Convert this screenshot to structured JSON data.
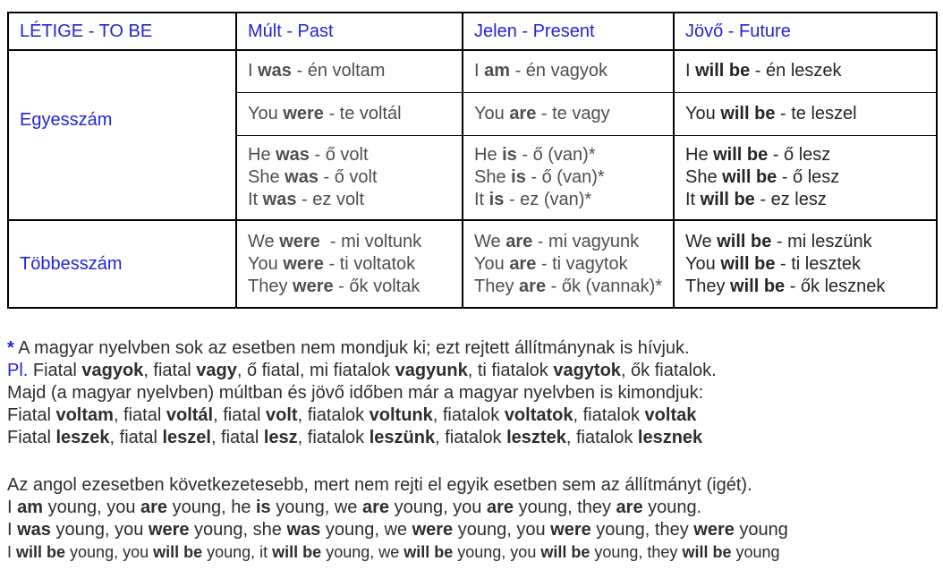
{
  "colors": {
    "accent_blue": "#2424d6",
    "body_text": "#2e2e2e",
    "muted_cell_text": "#4f4f4f",
    "dark_cell_text": "#262626",
    "border_color": "#000000",
    "page_bg": "#ffffff"
  },
  "table": {
    "header": [
      "LÉTIGE - TO BE",
      "Múlt - Past",
      "Jelen - Present",
      "Jövő - Future"
    ],
    "groups": [
      {
        "label": "Egyesszám",
        "rows": [
          {
            "past": "I **was** - én voltam",
            "present": "I **am** - én vagyok",
            "future": "I **will be** - én leszek"
          },
          {
            "past": "You **were** - te voltál",
            "present": "You **are** - te vagy",
            "future": "You **will be** - te leszel"
          },
          {
            "past": [
              "He **was** - ő volt",
              "She **was** - ő volt",
              "It **was** - ez volt"
            ],
            "present": [
              "He **is** - ő (van)*",
              "She **is** - ő (van)*",
              "It **is** - ez (van)*"
            ],
            "future": [
              "He **will be** - ő lesz",
              "She **will be** - ő lesz",
              "It **will be** - ez lesz"
            ]
          }
        ]
      },
      {
        "label": "Többesszám",
        "rows": [
          {
            "past": [
              "We **were**  - mi voltunk",
              "You **were** - ti voltatok",
              "They **were** - ők voltak"
            ],
            "present": [
              "We **are** - mi vagyunk",
              "You **are** - ti vagytok",
              "They **are** - ők (vannak)*"
            ],
            "future": [
              "We **will be** - mi leszünk",
              "You **will be** - ti lesztek",
              "They **will be** - ők lesznek"
            ]
          }
        ]
      }
    ]
  },
  "notes1": {
    "0": {
      "lead": "*",
      "text": " A magyar nyelvben sok az esetben nem mondjuk ki; ezt rejtett állítmánynak is hívjuk."
    },
    "1": {
      "lead": "Pl.",
      "text": " Fiatal **vagyok**, fiatal **vagy**, ő fiatal, mi fiatalok **vagyunk**, ti fiatalok **vagytok**, ők fiatalok."
    },
    "2": {
      "text": "Majd (a magyar nyelvben) múltban és jövő időben már a magyar nyelvben is kimondjuk:"
    },
    "3": {
      "text": "Fiatal **voltam**, fiatal **voltál**, fiatal **volt**, fiatalok **voltunk**, fiatalok **voltatok**, fiatalok **voltak**"
    },
    "4": {
      "text": "Fiatal **leszek**, fiatal **leszel**, fiatal **lesz**, fiatalok **leszünk**, fiatalok **lesztek**, fiatalok **lesznek**"
    }
  },
  "notes2": {
    "0": {
      "text": "Az angol ezesetben következetesebb, mert nem rejti el egyik esetben sem az állítmányt (igét)."
    },
    "1": {
      "text": "I **am** young, you **are** young, he **is** young, we **are** young, you **are** young, they **are** young."
    },
    "2": {
      "text": "I **was** young, you **were** young, she **was** young, we **were** young, you **were** young, they **were** young"
    },
    "3": {
      "text": "I **will be** young, you **will be** young, it **will be** young, we **will be** young, you **will be** young, they **will be** young"
    }
  }
}
